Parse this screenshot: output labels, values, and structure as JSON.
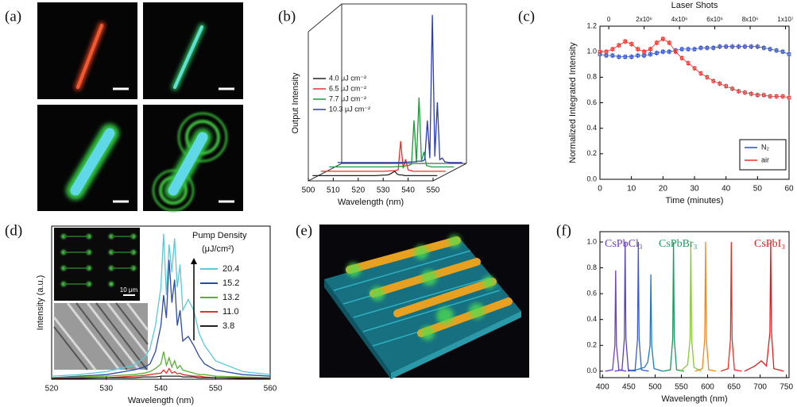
{
  "panel_labels": [
    "(a)",
    "(b)",
    "(c)",
    "(d)",
    "(e)",
    "(f)"
  ],
  "chart_data": [
    {
      "type": "waterfall",
      "x_label": "Wavelength (nm)",
      "y_label": "Output Intensity",
      "xlim": [
        500,
        550
      ],
      "xticks": [
        500,
        510,
        520,
        530,
        540,
        550
      ],
      "ylim": [
        0,
        100
      ],
      "legend": "center left",
      "x": [
        500,
        525,
        530,
        531,
        532,
        533,
        534,
        535,
        536,
        537,
        538,
        539,
        540,
        541,
        542,
        543,
        545,
        550
      ],
      "series": [
        {
          "name": "4.0 μJ cm⁻²",
          "color": "#222222",
          "values": [
            2,
            2,
            2.5,
            3,
            4,
            5,
            3,
            2.5,
            2.5,
            2,
            2,
            2,
            2,
            2,
            2,
            2,
            2,
            2
          ]
        },
        {
          "name": "6.5 μJ cm⁻²",
          "color": "#e8302a",
          "values": [
            2,
            2,
            2.5,
            3,
            22,
            4,
            10,
            3,
            2.5,
            2,
            2,
            2,
            2,
            2,
            2,
            2,
            2,
            2
          ]
        },
        {
          "name": "7.7 μJ cm⁻²",
          "color": "#1f9a3a",
          "values": [
            2,
            2,
            2.5,
            3,
            3,
            4,
            33,
            5,
            48,
            6,
            12,
            3,
            2.5,
            2,
            2,
            2,
            2,
            2
          ]
        },
        {
          "name": "10.3 μJ cm⁻²",
          "color": "#2a3cb8",
          "values": [
            2,
            2,
            2.5,
            2.5,
            3,
            3,
            3,
            4,
            30,
            5,
            100,
            6,
            42,
            4,
            5,
            2.5,
            2,
            2
          ]
        }
      ]
    },
    {
      "type": "line",
      "x_label": "Time (minutes)",
      "y_label": "Normalized Integrated Intensity",
      "x2_label": "Laser Shots",
      "xlim": [
        0,
        60
      ],
      "xticks": [
        0,
        10,
        20,
        30,
        40,
        50,
        60
      ],
      "ylim": [
        0,
        1.2
      ],
      "yticks": [
        {
          "value": 0,
          "label": "0.0"
        },
        0.2,
        0.4,
        0.6,
        0.8,
        {
          "value": 1,
          "label": "1.0"
        },
        1.2
      ],
      "x2lim": [
        -500000,
        10200000
      ],
      "x2ticks": [
        0,
        {
          "value": 2000000,
          "label": "2x10⁶"
        },
        {
          "value": 4000000,
          "label": "4x10⁶"
        },
        {
          "value": 6000000,
          "label": "6x10⁶"
        },
        {
          "value": 8000000,
          "label": "8x10⁶"
        },
        {
          "value": 10000000,
          "label": "1x10⁷"
        }
      ],
      "legend": "lower right",
      "x": [
        0,
        2,
        4,
        6,
        8,
        10,
        12,
        14,
        16,
        18,
        20,
        22,
        24,
        26,
        28,
        30,
        32,
        34,
        36,
        38,
        40,
        42,
        44,
        46,
        48,
        50,
        52,
        54,
        56,
        58,
        60
      ],
      "series": [
        {
          "name": "N₂",
          "color": "#2a4cc8",
          "values": [
            0.98,
            0.97,
            0.97,
            0.96,
            0.96,
            0.96,
            0.97,
            0.97,
            0.98,
            0.99,
            1.0,
            1.0,
            1.01,
            1.02,
            1.02,
            1.02,
            1.03,
            1.03,
            1.03,
            1.04,
            1.04,
            1.04,
            1.04,
            1.04,
            1.04,
            1.04,
            1.03,
            1.02,
            1.01,
            1.0,
            0.98
          ],
          "errors": [
            0.02,
            0.02,
            0.02,
            0.02,
            0.02,
            0.02,
            0.02,
            0.02,
            0.02,
            0.02,
            0.02,
            0.02,
            0.02,
            0.02,
            0.02,
            0.02,
            0.02,
            0.02,
            0.02,
            0.02,
            0.02,
            0.02,
            0.02,
            0.02,
            0.02,
            0.02,
            0.02,
            0.02,
            0.02,
            0.02,
            0.02
          ]
        },
        {
          "name": "air",
          "color": "#e8302a",
          "values": [
            1.0,
            1.0,
            1.02,
            1.05,
            1.08,
            1.06,
            1.02,
            1.0,
            1.02,
            1.07,
            1.1,
            1.07,
            1.0,
            0.95,
            0.91,
            0.87,
            0.83,
            0.8,
            0.77,
            0.75,
            0.73,
            0.71,
            0.69,
            0.68,
            0.67,
            0.66,
            0.66,
            0.65,
            0.65,
            0.65,
            0.64
          ],
          "errors": [
            0.02,
            0.02,
            0.02,
            0.02,
            0.02,
            0.02,
            0.02,
            0.02,
            0.02,
            0.02,
            0.02,
            0.02,
            0.02,
            0.02,
            0.02,
            0.02,
            0.02,
            0.02,
            0.02,
            0.02,
            0.02,
            0.02,
            0.02,
            0.02,
            0.02,
            0.02,
            0.02,
            0.02,
            0.02,
            0.02,
            0.02
          ]
        }
      ]
    },
    {
      "type": "line",
      "x_label": "Wavelength (nm)",
      "y_label": "Intensity (a.u.)",
      "xlim": [
        520,
        560
      ],
      "xticks": [
        520,
        530,
        540,
        550,
        560
      ],
      "ylim": [
        0,
        100
      ],
      "legend": "upper right",
      "legend_title": [
        "Pump Density",
        "(μJ/cm²)"
      ],
      "inset_label": "10 μm",
      "x": [
        520,
        525,
        530,
        535,
        537,
        538,
        539,
        540,
        540.5,
        541,
        541.5,
        542,
        542.5,
        543,
        543.5,
        544,
        545,
        546,
        547,
        548,
        550,
        555,
        560
      ],
      "series": [
        {
          "name": "20.4",
          "color": "#5cc8d8",
          "values": [
            2,
            3,
            5,
            9,
            14,
            20,
            35,
            60,
            95,
            55,
            88,
            70,
            92,
            60,
            75,
            45,
            52,
            45,
            30,
            22,
            12,
            5,
            3
          ]
        },
        {
          "name": "15.2",
          "color": "#2a4ca8",
          "values": [
            1,
            2,
            3,
            6,
            8,
            10,
            18,
            35,
            55,
            40,
            78,
            50,
            65,
            35,
            45,
            25,
            28,
            22,
            15,
            10,
            6,
            3,
            2
          ]
        },
        {
          "name": "13.2",
          "color": "#5ab030",
          "values": [
            1,
            1.5,
            2,
            3,
            4,
            5,
            7,
            10,
            18,
            9,
            14,
            8,
            12,
            7,
            9,
            6,
            5,
            4,
            3,
            3,
            2,
            1.5,
            1
          ]
        },
        {
          "name": "11.0",
          "color": "#e8302a",
          "values": [
            0.5,
            1,
            1,
            2,
            2.5,
            3,
            3.5,
            4,
            6,
            4,
            7,
            4,
            5,
            3.5,
            4,
            3,
            2.5,
            2,
            2,
            1.5,
            1,
            1,
            0.5
          ]
        },
        {
          "name": "3.8",
          "color": "#222222",
          "values": [
            0.5,
            0.5,
            1,
            1,
            1.5,
            1.5,
            1.5,
            2,
            2,
            2,
            2,
            2,
            2,
            2,
            2,
            1.5,
            1.5,
            1.5,
            1,
            1,
            1,
            0.5,
            0.5
          ]
        }
      ]
    },
    {
      "type": "line",
      "x_label": "Wavelength (nm)",
      "xlim": [
        395,
        755
      ],
      "xticks": [
        400,
        450,
        500,
        550,
        600,
        650,
        700,
        750
      ],
      "ylim": [
        -0.05,
        1.08
      ],
      "yticks": [
        {
          "value": 0,
          "label": "0.0"
        },
        0.2,
        0.4,
        0.6,
        0.8,
        {
          "value": 1,
          "label": "1.0"
        }
      ],
      "annotations": [
        {
          "text": "CsPbCl₃",
          "color": "#6a3fc0"
        },
        {
          "text": "CsPbBr₃",
          "color": "#1a9a60"
        },
        {
          "text": "CsPbI₃",
          "color": "#e02020"
        }
      ],
      "series": [
        {
          "color": "#7040c0",
          "x": [
            405,
            419,
            423.5,
            425,
            426.5,
            431,
            445
          ],
          "values": [
            0,
            0.01,
            0.2,
            0.78,
            0.2,
            0.01,
            0
          ]
        },
        {
          "color": "#5a3fd0",
          "x": [
            423,
            437,
            441.5,
            443,
            444.5,
            449,
            463
          ],
          "values": [
            0,
            0.01,
            0.25,
            1.0,
            0.25,
            0.01,
            0
          ]
        },
        {
          "color": "#3b5fc8",
          "x": [
            448,
            462,
            466.5,
            468,
            469.5,
            474,
            488
          ],
          "values": [
            0,
            0.01,
            0.25,
            1.0,
            0.25,
            0.01,
            0
          ]
        },
        {
          "color": "#1f7ac0",
          "x": [
            455,
            480,
            486,
            490.5,
            492,
            493.5,
            498,
            515
          ],
          "values": [
            0,
            0.03,
            0.07,
            0.2,
            0.75,
            0.2,
            0.02,
            0
          ]
        },
        {
          "color": "#1a9a60",
          "x": [
            515,
            529,
            533.5,
            535,
            536.5,
            541,
            555
          ],
          "values": [
            0,
            0.01,
            0.25,
            1.0,
            0.25,
            0.01,
            0
          ]
        },
        {
          "color": "#8cc83a",
          "x": [
            548,
            562,
            566.5,
            568,
            569.5,
            574,
            588
          ],
          "values": [
            0,
            0.05,
            0.25,
            1.0,
            0.25,
            0.03,
            0
          ]
        },
        {
          "color": "#f08a20",
          "x": [
            576,
            590,
            594.5,
            596,
            597.5,
            602,
            616
          ],
          "values": [
            0,
            0.02,
            0.25,
            1.0,
            0.25,
            0.01,
            0
          ]
        },
        {
          "color": "#e8302a",
          "x": [
            625,
            639,
            643.5,
            645,
            646.5,
            651,
            665
          ],
          "values": [
            0,
            0.02,
            0.25,
            1.0,
            0.25,
            0.01,
            0
          ]
        },
        {
          "color": "#e02020",
          "x": [
            670,
            690,
            702,
            712,
            718.5,
            720,
            721.5,
            726,
            745
          ],
          "values": [
            0,
            0.04,
            0.08,
            0.04,
            0.3,
            1.0,
            0.3,
            0.02,
            0
          ]
        }
      ]
    }
  ]
}
